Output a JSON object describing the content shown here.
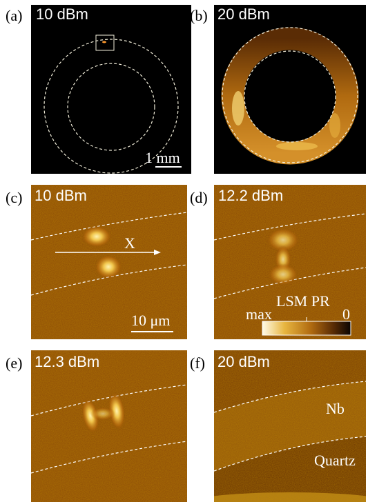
{
  "panels": {
    "a": {
      "label": "(a)",
      "power": "10 dBm",
      "scale_bar": "1 mm"
    },
    "b": {
      "label": "(b)",
      "power": "20 dBm"
    },
    "c": {
      "label": "(c)",
      "power": "10 dBm",
      "axis": "X",
      "scale_bar": "10 μm"
    },
    "d": {
      "label": "(d)",
      "power": "12.2 dBm",
      "colorbar": {
        "title": "LSM PR",
        "max_label": "max",
        "min_label": "0"
      }
    },
    "e": {
      "label": "(e)",
      "power": "12.3 dBm"
    },
    "f": {
      "label": "(f)",
      "power": "20 dBm",
      "region_top": "Nb",
      "region_bottom": "Quartz"
    }
  },
  "colors": {
    "background_dark": "#000000",
    "map_mid": "#8a4a00",
    "map_bright": "#ffe7a0"
  }
}
